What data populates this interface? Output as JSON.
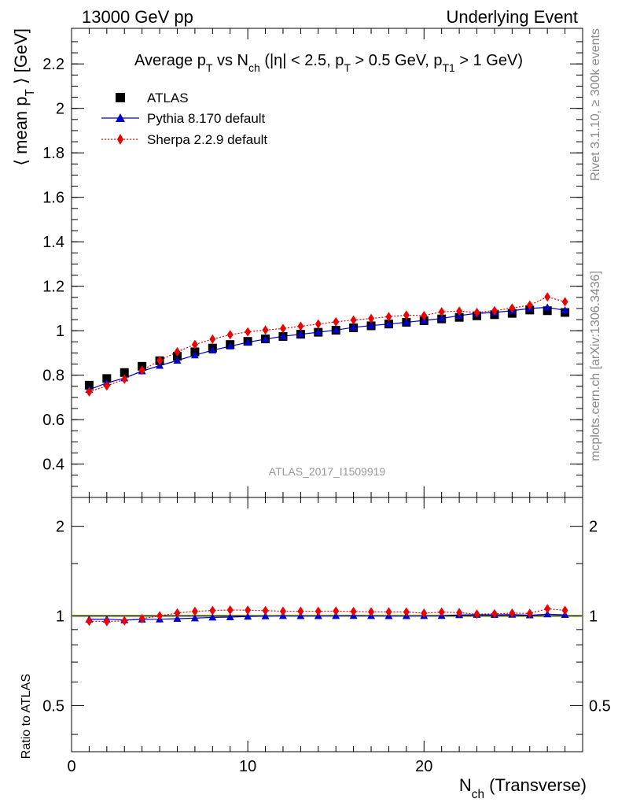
{
  "header": {
    "left": "13000 GeV pp",
    "right": "Underlying Event"
  },
  "side_labels": {
    "rivet": "Rivet 3.1.10, ≥ 300k events",
    "mcplots": "mcplots.cern.ch [arXiv:1306.3436]"
  },
  "watermark": "ATLAS_2017_I1509919",
  "chart_data": [
    {
      "type": "scatter",
      "panel": "main",
      "title": "Average p_T vs N_ch (|η| < 2.5, p_T > 0.5 GeV, p_T1 > 1 GeV)",
      "xlabel": "N_ch (Transverse)",
      "ylabel": "⟨ mean p_T ⟩ [GeV]",
      "xlim": [
        0,
        29
      ],
      "ylim": [
        0.25,
        2.36
      ],
      "x_ticks": [
        0,
        10,
        20
      ],
      "y_ticks": [
        0.4,
        0.6,
        0.8,
        1,
        1.2,
        1.4,
        1.6,
        1.8,
        2,
        2.2
      ],
      "legend_position": "top-left",
      "x": [
        1,
        2,
        3,
        4,
        5,
        6,
        7,
        8,
        9,
        10,
        11,
        12,
        13,
        14,
        15,
        16,
        17,
        18,
        19,
        20,
        21,
        22,
        23,
        24,
        25,
        26,
        27,
        28
      ],
      "series": [
        {
          "name": "ATLAS",
          "style": "black squares",
          "color": "#000000",
          "values": [
            0.755,
            0.785,
            0.812,
            0.84,
            0.865,
            0.885,
            0.905,
            0.922,
            0.938,
            0.952,
            0.963,
            0.974,
            0.984,
            0.993,
            1.002,
            1.013,
            1.022,
            1.03,
            1.038,
            1.045,
            1.053,
            1.06,
            1.067,
            1.072,
            1.078,
            1.093,
            1.09,
            1.082
          ]
        },
        {
          "name": "Pythia 8.170 default",
          "style": "blue solid line, triangle markers",
          "color": "#0000cc",
          "values": [
            0.735,
            0.765,
            0.787,
            0.818,
            0.843,
            0.866,
            0.89,
            0.912,
            0.93,
            0.948,
            0.962,
            0.975,
            0.984,
            0.993,
            1.003,
            1.015,
            1.023,
            1.03,
            1.038,
            1.046,
            1.055,
            1.068,
            1.078,
            1.082,
            1.09,
            1.1,
            1.105,
            1.092
          ]
        },
        {
          "name": "Sherpa 2.2.9 default",
          "style": "red dotted line, diamond markers",
          "color": "#ee0000",
          "values": [
            0.725,
            0.752,
            0.782,
            0.822,
            0.866,
            0.905,
            0.938,
            0.962,
            0.982,
            0.995,
            1.003,
            1.01,
            1.02,
            1.03,
            1.04,
            1.048,
            1.055,
            1.063,
            1.07,
            1.068,
            1.085,
            1.088,
            1.082,
            1.09,
            1.102,
            1.115,
            1.152,
            1.13
          ]
        }
      ]
    },
    {
      "type": "scatter",
      "panel": "ratio",
      "xlabel": "N_ch (Transverse)",
      "ylabel": "Ratio to ATLAS",
      "xlim": [
        0,
        29
      ],
      "ylim": [
        0.35,
        2.5
      ],
      "y_scale": "log",
      "y_ticks": [
        0.5,
        1,
        2
      ],
      "x_ticks": [
        0,
        10,
        20
      ],
      "reference_band_color": "#c8e632",
      "x": [
        1,
        2,
        3,
        4,
        5,
        6,
        7,
        8,
        9,
        10,
        11,
        12,
        13,
        14,
        15,
        16,
        17,
        18,
        19,
        20,
        21,
        22,
        23,
        24,
        25,
        26,
        27,
        28
      ],
      "series": [
        {
          "name": "Pythia 8.170 default",
          "color": "#0000cc",
          "values": [
            0.974,
            0.975,
            0.969,
            0.974,
            0.975,
            0.979,
            0.983,
            0.989,
            0.991,
            0.996,
            0.999,
            1.001,
            1.0,
            1.0,
            1.001,
            1.002,
            1.001,
            1.0,
            1.0,
            1.001,
            1.002,
            1.008,
            1.01,
            1.009,
            1.011,
            1.006,
            1.014,
            1.009
          ]
        },
        {
          "name": "Sherpa 2.2.9 default",
          "color": "#ee0000",
          "values": [
            0.96,
            0.958,
            0.963,
            0.979,
            1.001,
            1.023,
            1.036,
            1.043,
            1.047,
            1.045,
            1.042,
            1.037,
            1.037,
            1.037,
            1.038,
            1.035,
            1.032,
            1.032,
            1.031,
            1.022,
            1.03,
            1.026,
            1.014,
            1.017,
            1.022,
            1.02,
            1.057,
            1.044
          ]
        }
      ]
    }
  ]
}
